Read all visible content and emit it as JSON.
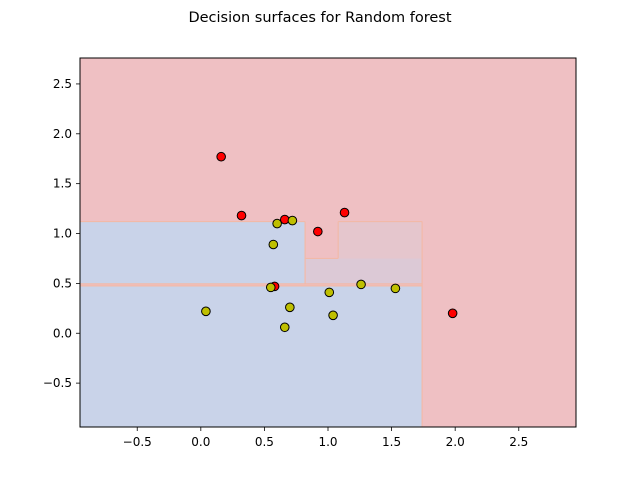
{
  "chart_data": {
    "type": "scatter",
    "title": "Decision surfaces for Random forest",
    "xlabel": "",
    "ylabel": "",
    "xlim": [
      -0.95,
      2.95
    ],
    "ylim": [
      -0.94,
      2.76
    ],
    "x_ticks": [
      -0.5,
      0.0,
      0.5,
      1.0,
      1.5,
      2.0,
      2.5
    ],
    "x_tick_labels": [
      "−0.5",
      "0.0",
      "0.5",
      "1.0",
      "1.5",
      "2.0",
      "2.5"
    ],
    "y_ticks": [
      -0.5,
      0.0,
      0.5,
      1.0,
      1.5,
      2.0,
      2.5
    ],
    "y_tick_labels": [
      "−0.5",
      "0.0",
      "0.5",
      "1.0",
      "1.5",
      "2.0",
      "2.5"
    ],
    "grid": false,
    "colors": {
      "background_region": "#efc0c3",
      "region_blue": "#c9d3e9",
      "region_mauve": "#dcc9d6",
      "region_pink_light": "#e5c6cd",
      "boundary_line": "#f2b9a8",
      "class_red": "#ff0000",
      "class_yellow": "#bfbf00",
      "marker_edge": "#000000"
    },
    "regions": [
      {
        "class": "red",
        "x": [
          -0.95,
          2.95
        ],
        "y": [
          -0.94,
          2.76
        ],
        "color": "#efc0c3"
      },
      {
        "class": "blue",
        "x": [
          -0.95,
          1.74
        ],
        "y": [
          -0.94,
          0.475
        ],
        "color": "#c9d3e9"
      },
      {
        "class": "blue",
        "x": [
          -0.95,
          0.82
        ],
        "y": [
          0.495,
          1.12
        ],
        "color": "#c9d3e9"
      },
      {
        "class": "mixed",
        "x": [
          0.82,
          1.74
        ],
        "y": [
          0.495,
          0.75
        ],
        "color": "#dcc9d6"
      },
      {
        "class": "mixed",
        "x": [
          1.08,
          1.74
        ],
        "y": [
          0.75,
          1.12
        ],
        "color": "#e5c6cd"
      }
    ],
    "series": [
      {
        "color": "#ff0000",
        "points": [
          {
            "x": 0.16,
            "y": 1.77
          },
          {
            "x": 0.32,
            "y": 1.18
          },
          {
            "x": 0.66,
            "y": 1.14
          },
          {
            "x": 0.92,
            "y": 1.02
          },
          {
            "x": 1.13,
            "y": 1.21
          },
          {
            "x": 0.58,
            "y": 0.47
          },
          {
            "x": 1.98,
            "y": 0.2
          }
        ]
      },
      {
        "color": "#bfbf00",
        "points": [
          {
            "x": 0.6,
            "y": 1.1
          },
          {
            "x": 0.72,
            "y": 1.13
          },
          {
            "x": 0.57,
            "y": 0.89
          },
          {
            "x": 0.55,
            "y": 0.46
          },
          {
            "x": 0.04,
            "y": 0.22
          },
          {
            "x": 0.7,
            "y": 0.26
          },
          {
            "x": 0.66,
            "y": 0.06
          },
          {
            "x": 1.01,
            "y": 0.41
          },
          {
            "x": 1.04,
            "y": 0.18
          },
          {
            "x": 1.26,
            "y": 0.49
          },
          {
            "x": 1.53,
            "y": 0.45
          }
        ]
      }
    ]
  }
}
